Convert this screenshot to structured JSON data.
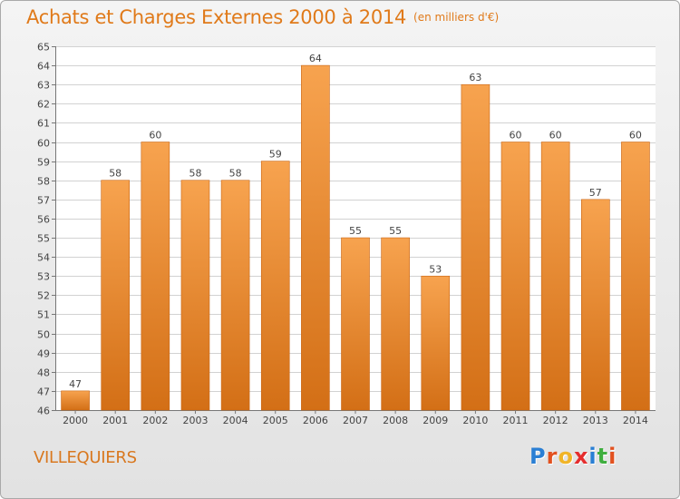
{
  "header": {
    "title": "Achats et Charges Externes 2000 à 2014",
    "subtitle": "(en milliers d'€)"
  },
  "location": {
    "name": "VILLEQUIERS"
  },
  "logo": {
    "text": "Proxiti",
    "letter_colors": [
      "#2a7fd4",
      "#e2511f",
      "#f0b428",
      "#e52d2d",
      "#2a7fd4",
      "#3fae3f",
      "#e2511f"
    ]
  },
  "colors": {
    "bar_light": "#f7a34f",
    "bar_dark": "#d36f16",
    "bar_edge": "#c86412",
    "grid": "#d2d2d2",
    "axis": "#777777",
    "text": "#444444"
  },
  "chart_data": {
    "type": "bar",
    "title": "Achats et Charges Externes 2000 à 2014",
    "subtitle": "(en milliers d'€)",
    "categories": [
      "2000",
      "2001",
      "2002",
      "2003",
      "2004",
      "2005",
      "2006",
      "2007",
      "2008",
      "2009",
      "2010",
      "2011",
      "2012",
      "2013",
      "2014"
    ],
    "values": [
      47,
      58,
      60,
      58,
      58,
      59,
      64,
      55,
      55,
      53,
      63,
      60,
      60,
      57,
      60
    ],
    "ylim": [
      46,
      65
    ],
    "yticks": [
      46,
      47,
      48,
      49,
      50,
      51,
      52,
      53,
      54,
      55,
      56,
      57,
      58,
      59,
      60,
      61,
      62,
      63,
      64,
      65
    ],
    "grid": true,
    "legend": "none"
  }
}
